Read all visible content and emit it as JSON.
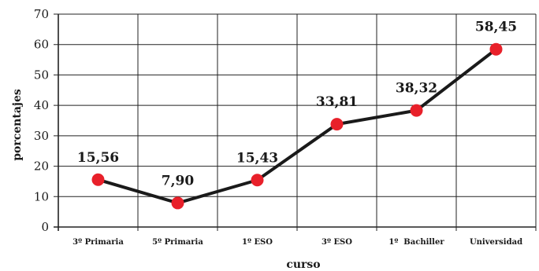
{
  "chart_data": {
    "type": "line",
    "categories": [
      "3º Primaria",
      "5º Primaria",
      "1º ESO",
      "3º ESO",
      "1º  Bachiller",
      "Universidad"
    ],
    "series": [
      {
        "values": [
          15.56,
          7.9,
          15.43,
          33.81,
          38.32,
          58.45
        ],
        "labels": [
          "15,56",
          "7,90",
          "15,43",
          "33,81",
          "38,32",
          "58,45"
        ]
      }
    ],
    "xlabel": "curso",
    "ylabel": "porcentajes",
    "ylim": [
      0,
      70
    ],
    "yticks": [
      "0",
      "10",
      "20",
      "30",
      "40",
      "50",
      "60",
      "70"
    ],
    "grid": true,
    "legend": "none",
    "line_color": "#1a1a1a",
    "marker_color": "#e8202a"
  }
}
